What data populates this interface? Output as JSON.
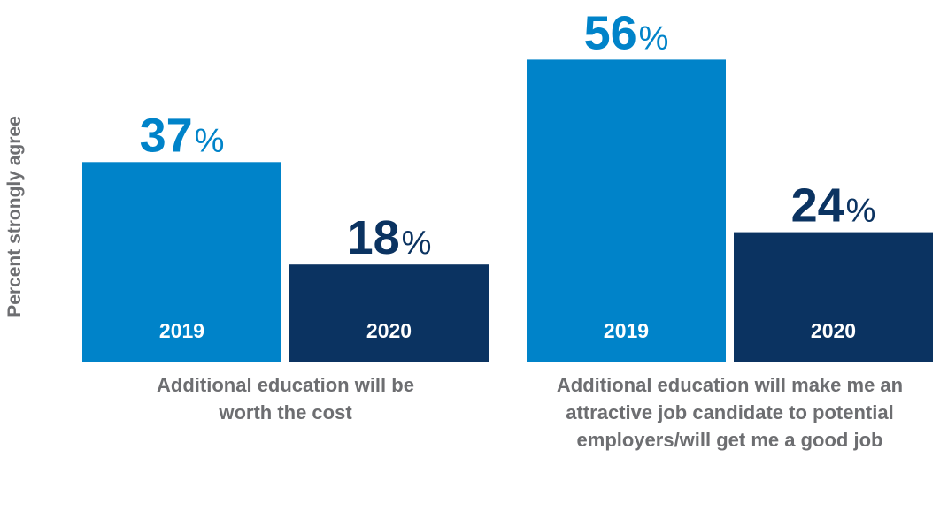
{
  "chart_data": {
    "type": "bar",
    "ylabel": "Percent strongly agree",
    "ylim": [
      0,
      60
    ],
    "categories": [
      "Additional education will be\nworth the cost",
      "Additional education will make me an\nattractive job candidate to potential\nemployers/will get me a good job"
    ],
    "series": [
      {
        "name": "2019",
        "values": [
          37,
          56
        ],
        "color": "#0083c9"
      },
      {
        "name": "2020",
        "values": [
          18,
          24
        ],
        "color": "#0b3361"
      }
    ],
    "value_suffix": "%",
    "grid": false,
    "legend": "none"
  }
}
